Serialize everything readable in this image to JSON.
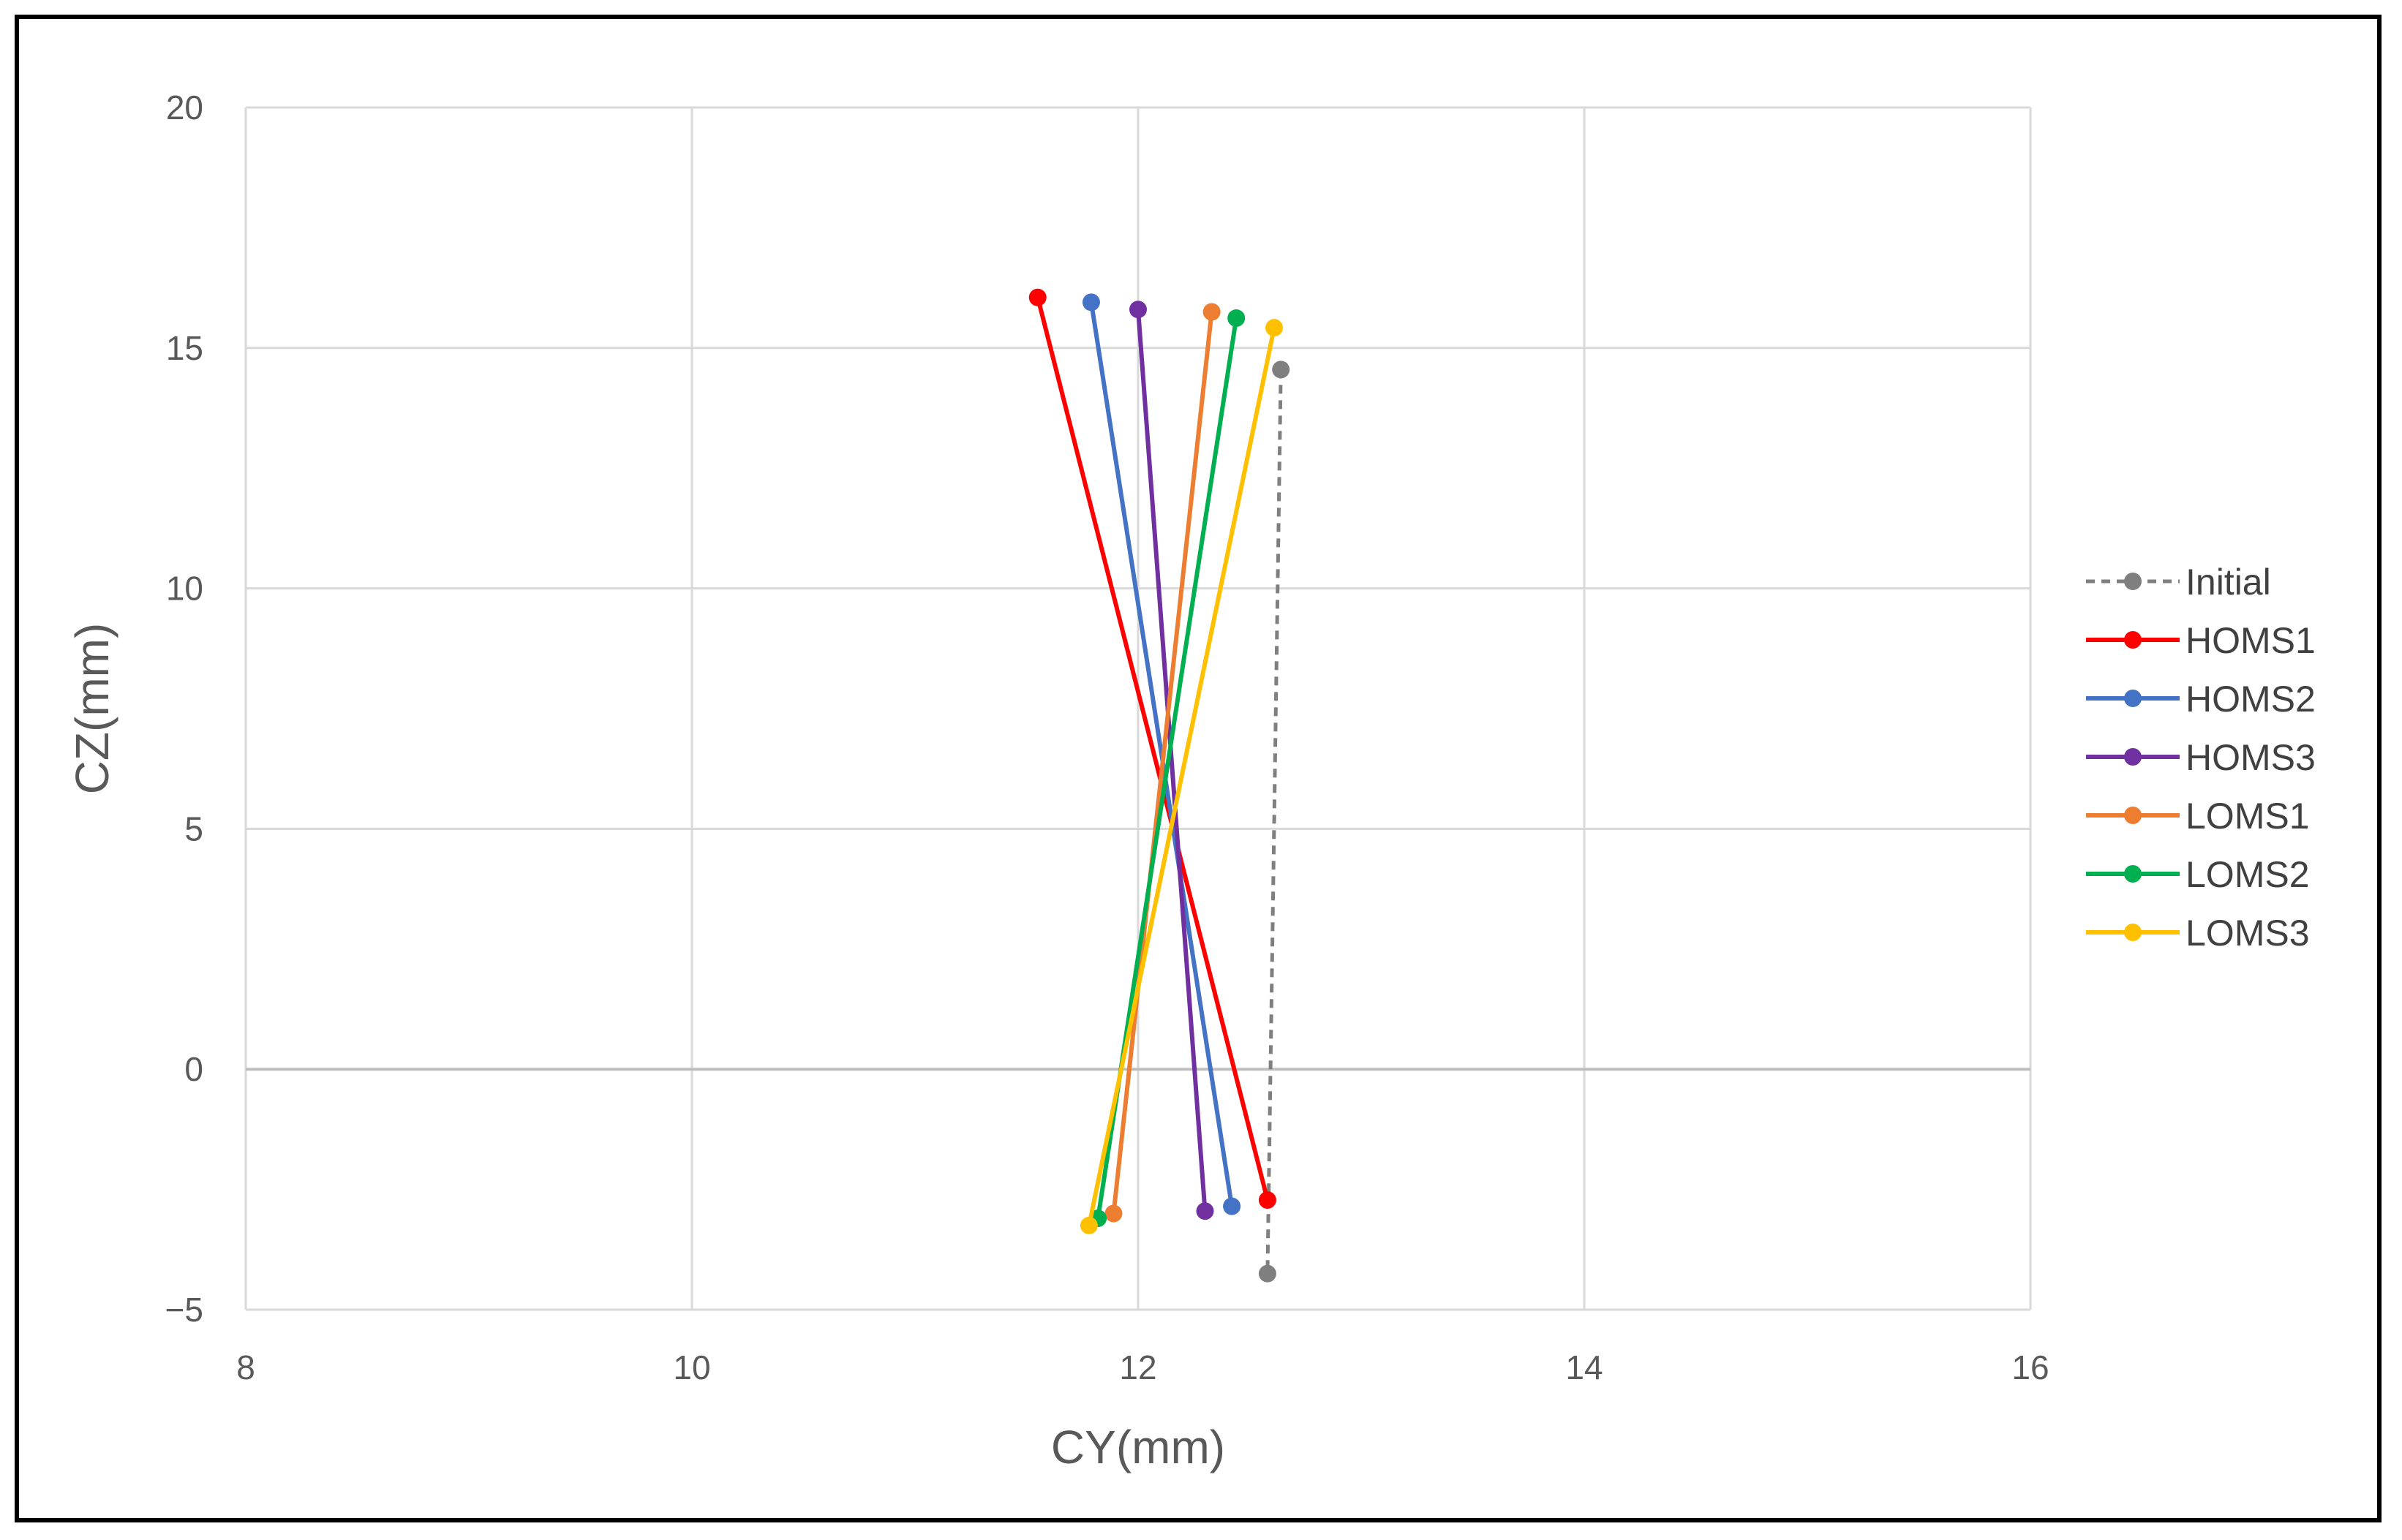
{
  "chart_data": {
    "type": "scatter",
    "title": "",
    "xlabel": "CY(mm)",
    "ylabel": "CZ(mm)",
    "xlim": [
      8,
      16
    ],
    "ylim": [
      -5,
      20
    ],
    "xticks": [
      8,
      10,
      12,
      14,
      16
    ],
    "yticks": [
      -5,
      0,
      5,
      10,
      15,
      20
    ],
    "xtick_labels": [
      "8",
      "10",
      "12",
      "14",
      "16"
    ],
    "ytick_labels": [
      "−5",
      "0",
      "5",
      "10",
      "15",
      "20"
    ],
    "grid": true,
    "legend_position": "right",
    "series": [
      {
        "name": "Initial",
        "color": "#7f7f7f",
        "dashed": true,
        "x": [
          12.64,
          12.58
        ],
        "y": [
          14.55,
          -4.25
        ]
      },
      {
        "name": "HOMS1",
        "color": "#ff0000",
        "dashed": false,
        "x": [
          11.55,
          12.58
        ],
        "y": [
          16.05,
          -2.72
        ]
      },
      {
        "name": "HOMS2",
        "color": "#4472c4",
        "dashed": false,
        "x": [
          11.79,
          12.42
        ],
        "y": [
          15.95,
          -2.85
        ]
      },
      {
        "name": "HOMS3",
        "color": "#7030a0",
        "dashed": false,
        "x": [
          12.0,
          12.3
        ],
        "y": [
          15.8,
          -2.95
        ]
      },
      {
        "name": "LOMS1",
        "color": "#ed7d31",
        "dashed": false,
        "x": [
          12.33,
          11.89
        ],
        "y": [
          15.75,
          -3.0
        ]
      },
      {
        "name": "LOMS2",
        "color": "#00b050",
        "dashed": false,
        "x": [
          12.44,
          11.82
        ],
        "y": [
          15.62,
          -3.1
        ]
      },
      {
        "name": "LOMS3",
        "color": "#ffc000",
        "dashed": false,
        "x": [
          12.61,
          11.78
        ],
        "y": [
          15.42,
          -3.25
        ]
      }
    ]
  }
}
